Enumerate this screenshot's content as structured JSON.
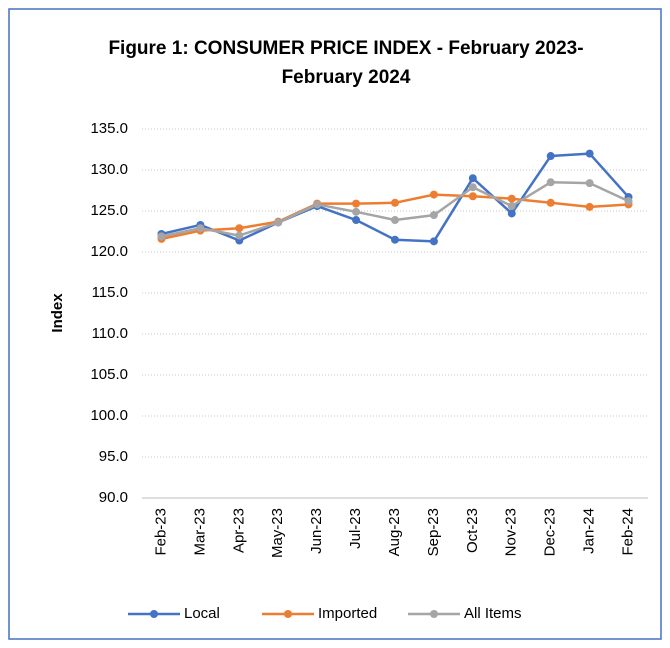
{
  "chart_data": {
    "type": "line",
    "title": "Figure 1: CONSUMER PRICE INDEX - February 2023- February 2024",
    "y_label": "Index",
    "categories": [
      "Feb-23",
      "Mar-23",
      "Apr-23",
      "May-23",
      "Jun-23",
      "Jul-23",
      "Aug-23",
      "Sep-23",
      "Oct-23",
      "Nov-23",
      "Dec-23",
      "Jan-24",
      "Feb-24"
    ],
    "series": [
      {
        "name": "Local",
        "color": "#4472c4",
        "values": [
          122.2,
          123.3,
          121.4,
          123.6,
          125.6,
          123.9,
          121.5,
          121.3,
          129.0,
          124.7,
          131.7,
          132.0,
          126.7
        ]
      },
      {
        "name": "Imported",
        "color": "#ed7d31",
        "values": [
          121.6,
          122.6,
          122.9,
          123.7,
          125.9,
          125.9,
          126.0,
          127.0,
          126.8,
          126.5,
          126.0,
          125.5,
          125.8
        ]
      },
      {
        "name": "All Items",
        "color": "#a5a5a5",
        "values": [
          121.9,
          122.9,
          122.0,
          123.6,
          125.8,
          124.9,
          123.9,
          124.5,
          127.9,
          125.6,
          128.5,
          128.4,
          126.2
        ]
      }
    ],
    "ylim": [
      90,
      135
    ],
    "yticks": [
      {
        "value": 90,
        "label": "90.0"
      },
      {
        "value": 95,
        "label": "95.0"
      },
      {
        "value": 100,
        "label": "100.0"
      },
      {
        "value": 105,
        "label": "105.0"
      },
      {
        "value": 110,
        "label": "110.0"
      },
      {
        "value": 115,
        "label": "115.0"
      },
      {
        "value": 120,
        "label": "120.0"
      },
      {
        "value": 125,
        "label": "125.0"
      },
      {
        "value": 130,
        "label": "130.0"
      },
      {
        "value": 135,
        "label": "135.0"
      }
    ],
    "grid": true,
    "legend": "bottom"
  }
}
